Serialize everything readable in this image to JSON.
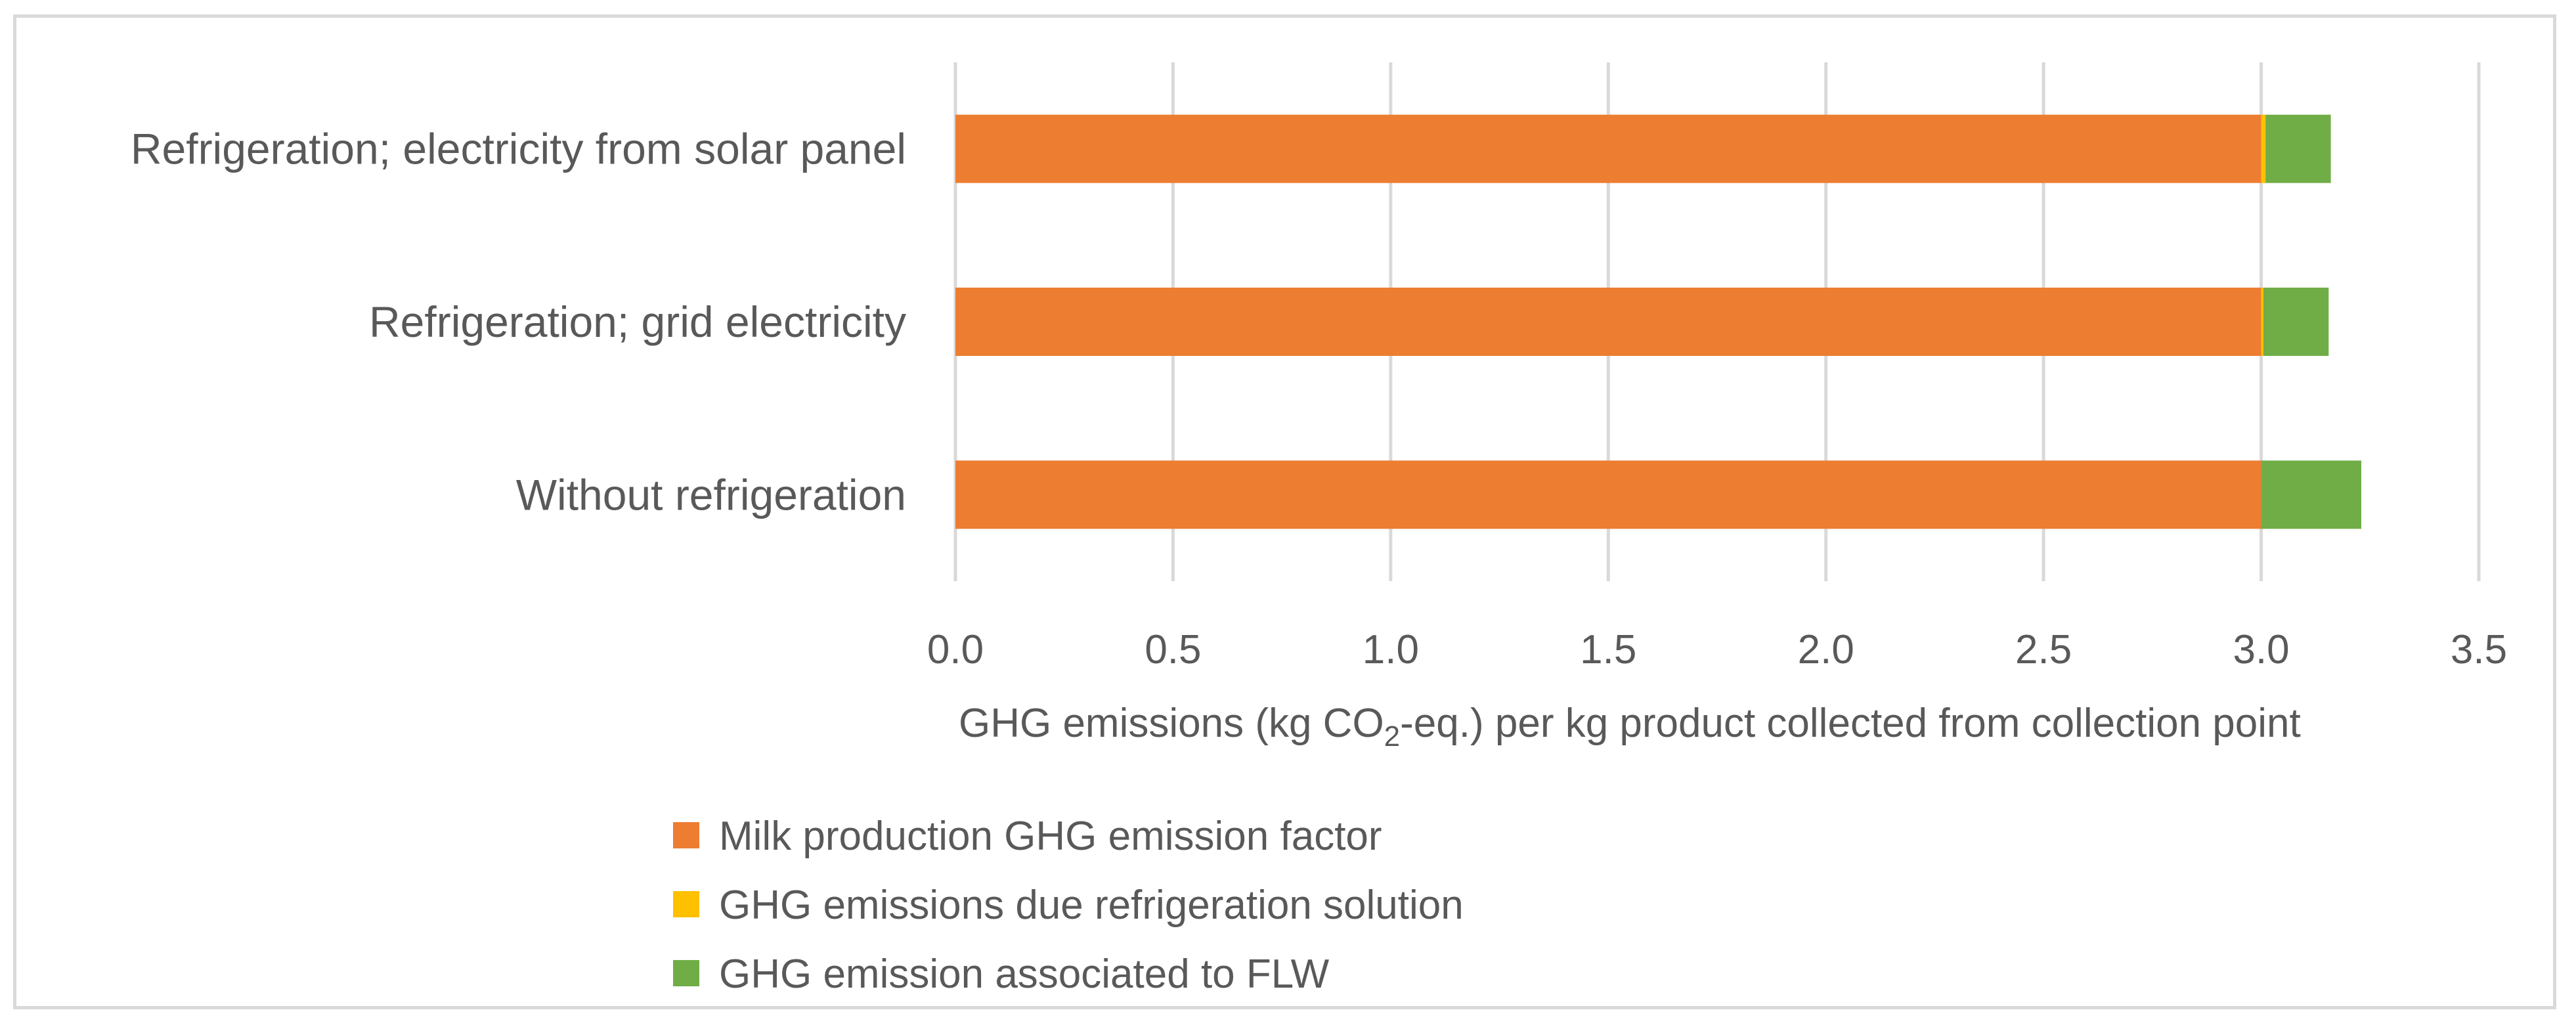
{
  "chart_data": {
    "type": "bar",
    "orientation": "horizontal",
    "stacked": true,
    "categories": [
      "Refrigeration; electricity from solar panel",
      "Refrigeration; grid electricity",
      "Without refrigeration"
    ],
    "series": [
      {
        "name": "Milk production GHG emission factor",
        "color": "#ED7D31",
        "values": [
          3.0,
          3.0,
          3.0
        ]
      },
      {
        "name": "GHG emissions due refrigeration solution",
        "color": "#FFC000",
        "values": [
          0.01,
          0.005,
          0.0
        ]
      },
      {
        "name": "GHG emission associated to FLW",
        "color": "#70AD47",
        "values": [
          0.15,
          0.15,
          0.23
        ]
      }
    ],
    "xlim": [
      0,
      3.5
    ],
    "xticks": [
      0.0,
      0.5,
      1.0,
      1.5,
      2.0,
      2.5,
      3.0,
      3.5
    ],
    "xlabel": {
      "prefix": "GHG emissions (kg CO",
      "subscript": "2",
      "suffix": "-eq.) per kg product collected from collection point"
    },
    "grid": "vertical",
    "legend_position": "bottom"
  }
}
